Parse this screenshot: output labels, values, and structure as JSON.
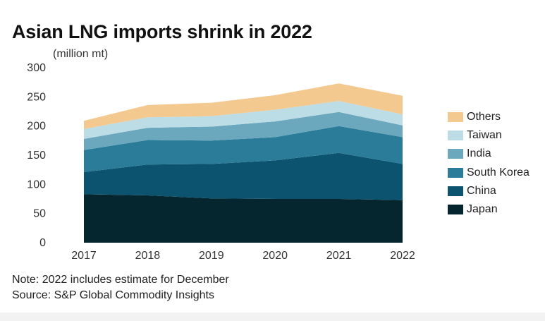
{
  "header": {
    "title": "Asian LNG imports shrink in 2022",
    "unit": "(million mt)"
  },
  "footer": {
    "note": "Note: 2022 includes estimate for December",
    "source": "Source: S&P Global Commodity Insights"
  },
  "colors": {
    "Japan": "#05252f",
    "China": "#0b536e",
    "South Korea": "#2a7c99",
    "India": "#6ba8bd",
    "Taiwan": "#bcdde6",
    "Others": "#f3c98f"
  },
  "chart_data": {
    "type": "area",
    "stacked": true,
    "title": "Asian LNG imports shrink in 2022",
    "ylabel": "(million mt)",
    "xlabel": "",
    "x": [
      "2017",
      "2018",
      "2019",
      "2020",
      "2021",
      "2022"
    ],
    "ylim": [
      0,
      300
    ],
    "yticks": [
      0,
      50,
      100,
      150,
      200,
      250,
      300
    ],
    "grid": false,
    "legend_position": "right",
    "series": [
      {
        "name": "Japan",
        "values": [
          83,
          81,
          76,
          75,
          75,
          73
        ]
      },
      {
        "name": "China",
        "values": [
          38,
          53,
          59,
          66,
          79,
          62
        ]
      },
      {
        "name": "South Korea",
        "values": [
          38,
          42,
          40,
          40,
          46,
          46
        ]
      },
      {
        "name": "India",
        "values": [
          19,
          21,
          24,
          27,
          24,
          20
        ]
      },
      {
        "name": "Taiwan",
        "values": [
          17,
          18,
          18,
          20,
          19,
          19
        ]
      },
      {
        "name": "Others",
        "values": [
          14,
          21,
          23,
          25,
          30,
          32
        ]
      }
    ]
  }
}
